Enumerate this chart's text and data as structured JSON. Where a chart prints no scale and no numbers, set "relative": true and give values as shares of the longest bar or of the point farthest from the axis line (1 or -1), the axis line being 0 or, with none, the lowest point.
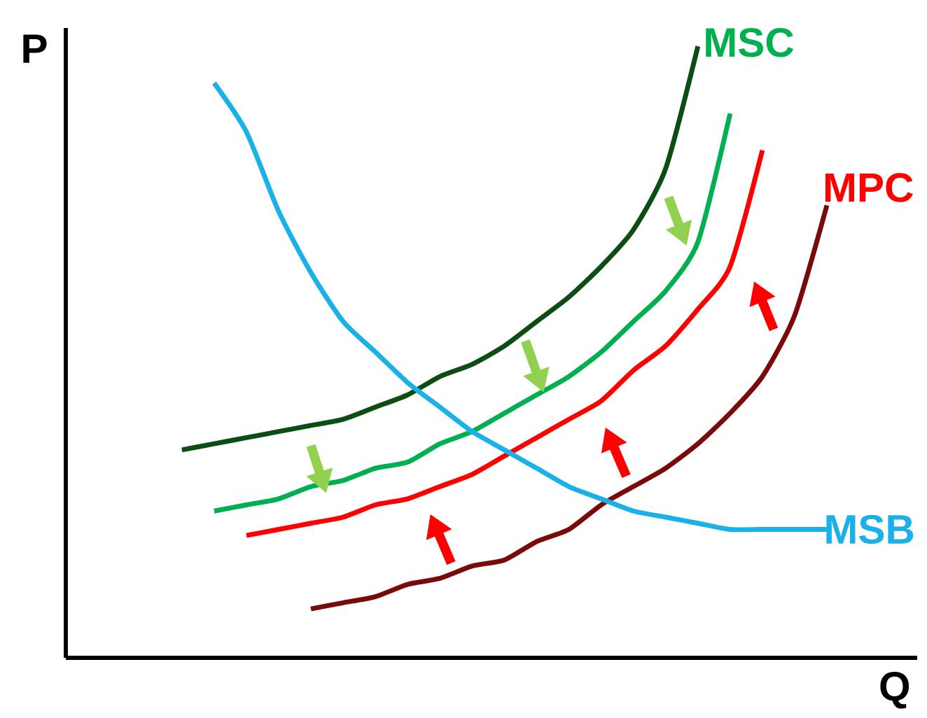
{
  "chart_data": {
    "type": "line",
    "relative": true,
    "xlabel": "Q",
    "ylabel": "P",
    "categories": [
      null,
      null,
      null,
      null,
      null,
      null,
      null,
      null,
      null,
      null,
      null,
      null,
      null,
      null,
      null,
      null,
      null,
      null,
      null,
      null,
      null
    ],
    "series": [
      {
        "color": "#0b4d12",
        "values": [
          0.34,
          0.35,
          0.36,
          0.37,
          0.38,
          0.39,
          0.41,
          0.43,
          0.46,
          0.48,
          0.51,
          0.55,
          0.59,
          0.64,
          0.7,
          0.8,
          1.0,
          null,
          null,
          null,
          null
        ]
      },
      {
        "name": "MSC",
        "color": "#00b050",
        "values": [
          null,
          0.24,
          0.25,
          0.26,
          0.28,
          0.29,
          0.31,
          0.32,
          0.35,
          0.37,
          0.4,
          0.43,
          0.46,
          0.5,
          0.55,
          0.6,
          0.68,
          0.89,
          null,
          null,
          null
        ]
      },
      {
        "name": "MPC",
        "color": "#ff0000",
        "values": [
          null,
          null,
          0.2,
          0.21,
          0.22,
          0.23,
          0.25,
          0.26,
          0.28,
          0.3,
          0.33,
          0.36,
          0.39,
          0.42,
          0.47,
          0.51,
          0.57,
          0.64,
          0.83,
          null,
          null
        ]
      },
      {
        "color": "#7a0a0a",
        "values": [
          null,
          null,
          null,
          null,
          0.08,
          0.09,
          0.1,
          0.12,
          0.13,
          0.15,
          0.16,
          0.19,
          0.21,
          0.25,
          0.28,
          0.31,
          0.35,
          0.4,
          0.46,
          0.56,
          0.74
        ]
      },
      {
        "name": "MSB",
        "color": "#1ab0e8",
        "values": [
          null,
          0.94,
          0.86,
          0.73,
          0.63,
          0.55,
          0.5,
          0.45,
          0.41,
          0.37,
          0.34,
          0.31,
          0.28,
          0.26,
          0.24,
          0.23,
          0.22,
          0.21,
          0.21,
          0.21,
          0.21
        ]
      }
    ]
  }
}
